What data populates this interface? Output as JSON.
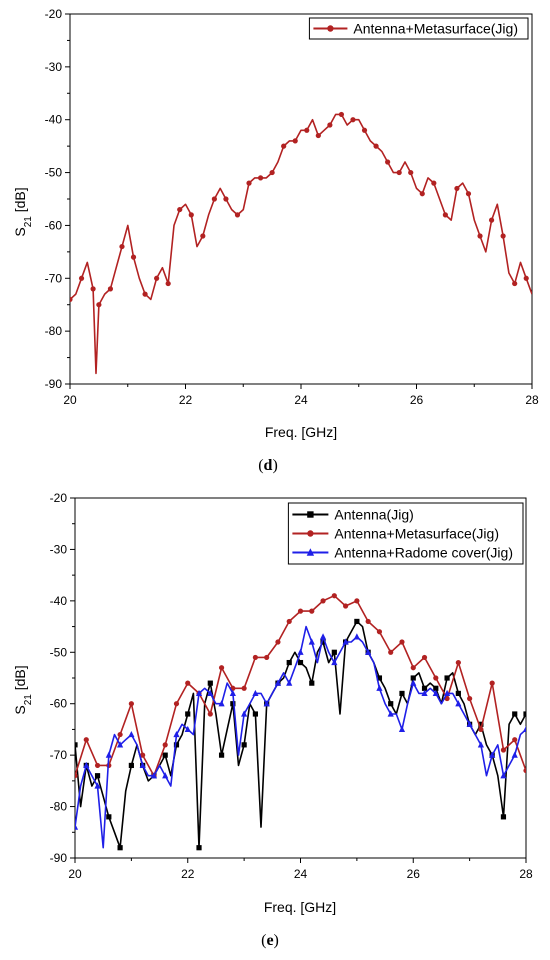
{
  "chart_data": [
    {
      "panel": "(d)",
      "type": "line",
      "xlabel": "Freq. [GHz]",
      "ylabel": "S21 [dB]",
      "xlim": [
        20,
        28
      ],
      "ylim": [
        -90,
        -20
      ],
      "xticks": [
        20,
        22,
        24,
        26,
        28
      ],
      "yticks": [
        -20,
        -30,
        -40,
        -50,
        -60,
        -70,
        -80,
        -90
      ],
      "legend": "top-right",
      "series": [
        {
          "name": "Antenna+Metasurface(Jig)",
          "color": "#b22222",
          "marker": "circle",
          "x": [
            20.0,
            20.1,
            20.2,
            20.3,
            20.4,
            20.45,
            20.5,
            20.6,
            20.7,
            20.8,
            20.9,
            21.0,
            21.1,
            21.2,
            21.3,
            21.4,
            21.5,
            21.6,
            21.7,
            21.8,
            21.9,
            22.0,
            22.1,
            22.2,
            22.3,
            22.4,
            22.5,
            22.6,
            22.7,
            22.8,
            22.9,
            23.0,
            23.1,
            23.2,
            23.3,
            23.4,
            23.5,
            23.6,
            23.7,
            23.8,
            23.9,
            24.0,
            24.1,
            24.2,
            24.3,
            24.4,
            24.5,
            24.6,
            24.7,
            24.8,
            24.9,
            25.0,
            25.1,
            25.2,
            25.3,
            25.4,
            25.5,
            25.6,
            25.7,
            25.8,
            25.9,
            26.0,
            26.1,
            26.2,
            26.3,
            26.4,
            26.5,
            26.6,
            26.7,
            26.8,
            26.9,
            27.0,
            27.1,
            27.2,
            27.3,
            27.4,
            27.5,
            27.6,
            27.7,
            27.8,
            27.9,
            28.0
          ],
          "y": [
            -74,
            -73,
            -70,
            -67,
            -72,
            -88,
            -75,
            -73,
            -72,
            -68,
            -64,
            -60,
            -66,
            -70,
            -73,
            -74,
            -70,
            -68,
            -71,
            -60,
            -57,
            -56,
            -58,
            -64,
            -62,
            -58,
            -55,
            -53,
            -55,
            -57,
            -58,
            -57,
            -52,
            -51,
            -51,
            -51,
            -50,
            -48,
            -45,
            -44,
            -44,
            -42,
            -42,
            -40,
            -43,
            -42,
            -41,
            -39,
            -39,
            -41,
            -40,
            -40,
            -42,
            -44,
            -45,
            -46,
            -48,
            -50,
            -50,
            -48,
            -50,
            -53,
            -54,
            -51,
            -52,
            -55,
            -58,
            -59,
            -53,
            -52,
            -54,
            -59,
            -62,
            -65,
            -59,
            -56,
            -62,
            -69,
            -71,
            -67,
            -70,
            -73
          ]
        }
      ]
    },
    {
      "panel": "(e)",
      "type": "line",
      "xlabel": "Freq. [GHz]",
      "ylabel": "S21 [dB]",
      "xlim": [
        20,
        28
      ],
      "ylim": [
        -90,
        -20
      ],
      "xticks": [
        20,
        22,
        24,
        26,
        28
      ],
      "yticks": [
        -20,
        -30,
        -40,
        -50,
        -60,
        -70,
        -80,
        -90
      ],
      "legend": "top-right",
      "series": [
        {
          "name": "Antenna(Jig)",
          "color": "#000000",
          "marker": "square",
          "x": [
            20.0,
            20.1,
            20.2,
            20.3,
            20.4,
            20.5,
            20.6,
            20.7,
            20.8,
            20.9,
            21.0,
            21.1,
            21.2,
            21.3,
            21.4,
            21.5,
            21.6,
            21.7,
            21.8,
            21.9,
            22.0,
            22.1,
            22.2,
            22.3,
            22.4,
            22.5,
            22.6,
            22.7,
            22.8,
            22.9,
            23.0,
            23.1,
            23.2,
            23.3,
            23.4,
            23.5,
            23.6,
            23.7,
            23.8,
            23.9,
            24.0,
            24.1,
            24.2,
            24.3,
            24.4,
            24.5,
            24.6,
            24.7,
            24.8,
            24.9,
            25.0,
            25.1,
            25.2,
            25.3,
            25.4,
            25.5,
            25.6,
            25.7,
            25.8,
            25.9,
            26.0,
            26.1,
            26.2,
            26.3,
            26.4,
            26.5,
            26.6,
            26.7,
            26.8,
            26.9,
            27.0,
            27.1,
            27.2,
            27.3,
            27.4,
            27.5,
            27.6,
            27.7,
            27.8,
            27.9,
            28.0
          ],
          "y": [
            -68,
            -80,
            -72,
            -76,
            -74,
            -78,
            -82,
            -85,
            -88,
            -77,
            -72,
            -68,
            -72,
            -75,
            -74,
            -72,
            -70,
            -74,
            -68,
            -66,
            -62,
            -58,
            -88,
            -60,
            -56,
            -62,
            -70,
            -65,
            -60,
            -72,
            -68,
            -60,
            -62,
            -84,
            -60,
            -58,
            -56,
            -55,
            -52,
            -50,
            -52,
            -53,
            -56,
            -50,
            -48,
            -52,
            -50,
            -62,
            -48,
            -46,
            -44,
            -45,
            -50,
            -52,
            -55,
            -57,
            -60,
            -62,
            -58,
            -60,
            -55,
            -54,
            -57,
            -56,
            -57,
            -60,
            -55,
            -54,
            -58,
            -60,
            -64,
            -66,
            -64,
            -68,
            -70,
            -74,
            -82,
            -64,
            -62,
            -64,
            -62
          ]
        },
        {
          "name": "Antenna+Metasurface(Jig)",
          "color": "#b22222",
          "marker": "circle",
          "x": [
            20.0,
            20.2,
            20.4,
            20.6,
            20.8,
            21.0,
            21.2,
            21.4,
            21.6,
            21.8,
            22.0,
            22.2,
            22.4,
            22.6,
            22.8,
            23.0,
            23.2,
            23.4,
            23.6,
            23.8,
            24.0,
            24.2,
            24.4,
            24.6,
            24.8,
            25.0,
            25.2,
            25.4,
            25.6,
            25.8,
            26.0,
            26.2,
            26.4,
            26.6,
            26.8,
            27.0,
            27.2,
            27.4,
            27.6,
            27.8,
            28.0
          ],
          "y": [
            -74,
            -67,
            -72,
            -72,
            -66,
            -60,
            -70,
            -74,
            -68,
            -60,
            -56,
            -58,
            -62,
            -53,
            -57,
            -57,
            -51,
            -51,
            -48,
            -44,
            -42,
            -42,
            -40,
            -39,
            -41,
            -40,
            -44,
            -46,
            -50,
            -48,
            -53,
            -51,
            -55,
            -59,
            -52,
            -59,
            -65,
            -56,
            -69,
            -67,
            -73
          ]
        },
        {
          "name": "Antenna+Radome cover(Jig)",
          "color": "#1f1fe8",
          "marker": "triangle",
          "x": [
            20.0,
            20.1,
            20.2,
            20.3,
            20.4,
            20.5,
            20.6,
            20.7,
            20.8,
            20.9,
            21.0,
            21.1,
            21.2,
            21.3,
            21.4,
            21.5,
            21.6,
            21.7,
            21.8,
            21.9,
            22.0,
            22.1,
            22.2,
            22.3,
            22.4,
            22.5,
            22.6,
            22.7,
            22.8,
            22.9,
            23.0,
            23.1,
            23.2,
            23.3,
            23.4,
            23.5,
            23.6,
            23.7,
            23.8,
            23.9,
            24.0,
            24.1,
            24.2,
            24.3,
            24.4,
            24.5,
            24.6,
            24.7,
            24.8,
            24.9,
            25.0,
            25.1,
            25.2,
            25.3,
            25.4,
            25.5,
            25.6,
            25.7,
            25.8,
            25.9,
            26.0,
            26.1,
            26.2,
            26.3,
            26.4,
            26.5,
            26.6,
            26.7,
            26.8,
            26.9,
            27.0,
            27.1,
            27.2,
            27.3,
            27.4,
            27.5,
            27.6,
            27.7,
            27.8,
            27.9,
            28.0
          ],
          "y": [
            -84,
            -76,
            -72,
            -74,
            -76,
            -88,
            -70,
            -66,
            -68,
            -67,
            -66,
            -68,
            -72,
            -74,
            -74,
            -72,
            -74,
            -76,
            -66,
            -64,
            -65,
            -66,
            -58,
            -57,
            -58,
            -60,
            -60,
            -56,
            -58,
            -70,
            -62,
            -60,
            -58,
            -58,
            -60,
            -58,
            -56,
            -54,
            -56,
            -53,
            -50,
            -45,
            -48,
            -52,
            -47,
            -50,
            -52,
            -50,
            -48,
            -48,
            -47,
            -48,
            -50,
            -52,
            -57,
            -60,
            -62,
            -62,
            -65,
            -60,
            -56,
            -58,
            -58,
            -57,
            -58,
            -60,
            -58,
            -58,
            -60,
            -62,
            -64,
            -66,
            -68,
            -74,
            -70,
            -68,
            -74,
            -72,
            -70,
            -66,
            -65
          ]
        }
      ]
    }
  ],
  "captions": {
    "d_open": "(",
    "d_letter": "d",
    "d_close": ")",
    "e_open": "(",
    "e_letter": "e",
    "e_close": ")"
  },
  "ylabel_parts": {
    "main": "S",
    "sub": "21",
    "rest": " [dB]"
  }
}
